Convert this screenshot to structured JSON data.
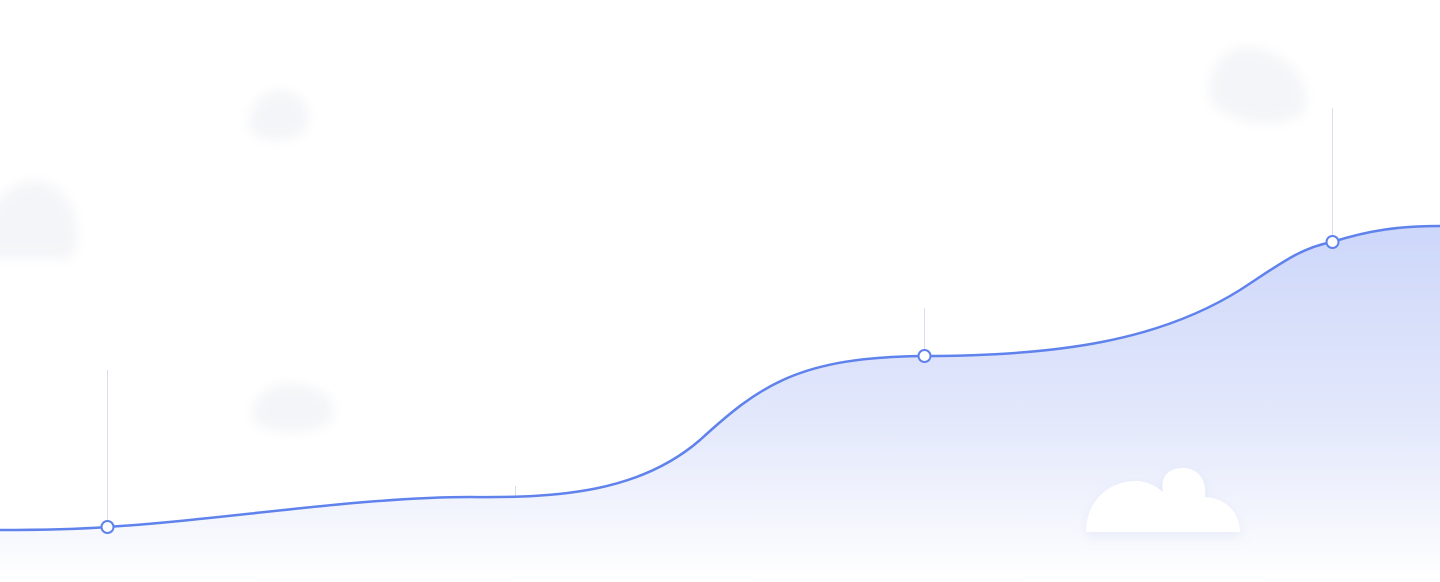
{
  "hero_graphic": {
    "kind": "decorative-growth-curve",
    "colors": {
      "line": "#5f82ec",
      "fill_top": "#cdd7fa",
      "fill_bottom": "#ffffff",
      "marker_fill": "#ffffff",
      "marker_stroke": "#5f82ec",
      "guide_line": "#d9def0",
      "cloud_faint": "#f4f5f8",
      "cloud_solid": "#ffffff"
    },
    "milestones": [
      {
        "id": "m1",
        "has_marker": true
      },
      {
        "id": "m2",
        "has_marker": false
      },
      {
        "id": "m3",
        "has_marker": true
      },
      {
        "id": "m4",
        "has_marker": true
      }
    ],
    "decorations": [
      {
        "id": "cloud-faint-left",
        "icon": "cloud-icon"
      },
      {
        "id": "cloud-faint-small",
        "icon": "cloud-icon"
      },
      {
        "id": "cloud-faint-mid",
        "icon": "cloud-icon"
      },
      {
        "id": "cloud-faint-top-right",
        "icon": "cloud-icon"
      },
      {
        "id": "cloud-solid-bottom",
        "icon": "cloud-icon"
      }
    ]
  }
}
